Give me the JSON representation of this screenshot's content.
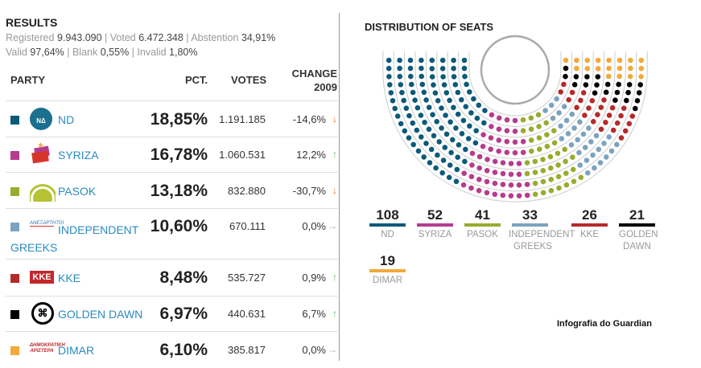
{
  "results": {
    "title": "RESULTS",
    "registered_label": "Registered",
    "registered": "9.943.090",
    "voted_label": "Voted",
    "voted": "6.472.348",
    "abstention_label": "Abstention",
    "abstention": "34,91%",
    "valid_label": "Valid",
    "valid": "97,64%",
    "blank_label": "Blank",
    "blank": "0,55%",
    "invalid_label": "Invalid",
    "invalid": "1,80%"
  },
  "table": {
    "headers": {
      "party": "PARTY",
      "pct": "PCT.",
      "votes": "VOTES",
      "change": "CHANGE",
      "change_year": "2009"
    },
    "rows": [
      {
        "party": "ND",
        "pct": "18,85%",
        "votes": "1.191.185",
        "change": "-14,6%",
        "trend": "down",
        "color": "#0b5a7a",
        "logo": "nd-logo"
      },
      {
        "party": "SYRIZA",
        "pct": "16,78%",
        "votes": "1.060.531",
        "change": "12,2%",
        "trend": "up",
        "color": "#b73b8f",
        "logo": "syriza-logo"
      },
      {
        "party": "PASOK",
        "pct": "13,18%",
        "votes": "832.880",
        "change": "-30,7%",
        "trend": "down",
        "color": "#9aab2e",
        "logo": "pasok-logo"
      },
      {
        "party": "INDEPENDENT GREEKS",
        "pct": "10,60%",
        "votes": "670.111",
        "change": "0,0%",
        "trend": "flat",
        "color": "#7ba3bf",
        "logo": "independent-greeks-logo"
      },
      {
        "party": "KKE",
        "pct": "8,48%",
        "votes": "535.727",
        "change": "0,9%",
        "trend": "up",
        "color": "#b52a2a",
        "logo": "kke-logo"
      },
      {
        "party": "GOLDEN DAWN",
        "pct": "6,97%",
        "votes": "440.631",
        "change": "6,7%",
        "trend": "up",
        "color": "#000000",
        "logo": "golden-dawn-logo"
      },
      {
        "party": "DIMAR",
        "pct": "6,10%",
        "votes": "385.817",
        "change": "0,0%",
        "trend": "flat",
        "color": "#f2aa3a",
        "logo": "dimar-logo"
      }
    ]
  },
  "seats": {
    "title": "DISTRIBUTION OF SEATS",
    "items": [
      {
        "seats": "108",
        "label": "ND",
        "color": "#0b5a7a"
      },
      {
        "seats": "52",
        "label": "SYRIZA",
        "color": "#b73b8f"
      },
      {
        "seats": "41",
        "label": "PASOK",
        "color": "#9aab2e"
      },
      {
        "seats": "33",
        "label": "INDEPENDENT GREEKS",
        "color": "#7ba3bf"
      },
      {
        "seats": "26",
        "label": "KKE",
        "color": "#b52a2a"
      },
      {
        "seats": "21",
        "label": "GOLDEN DAWN",
        "color": "#000000"
      },
      {
        "seats": "19",
        "label": "DIMAR",
        "color": "#f2aa3a"
      }
    ]
  },
  "trend_colors": {
    "up": "#5cb85c",
    "down": "#e8672a",
    "flat": "#aaaaaa"
  },
  "credit": "Infografia do Guardian"
}
